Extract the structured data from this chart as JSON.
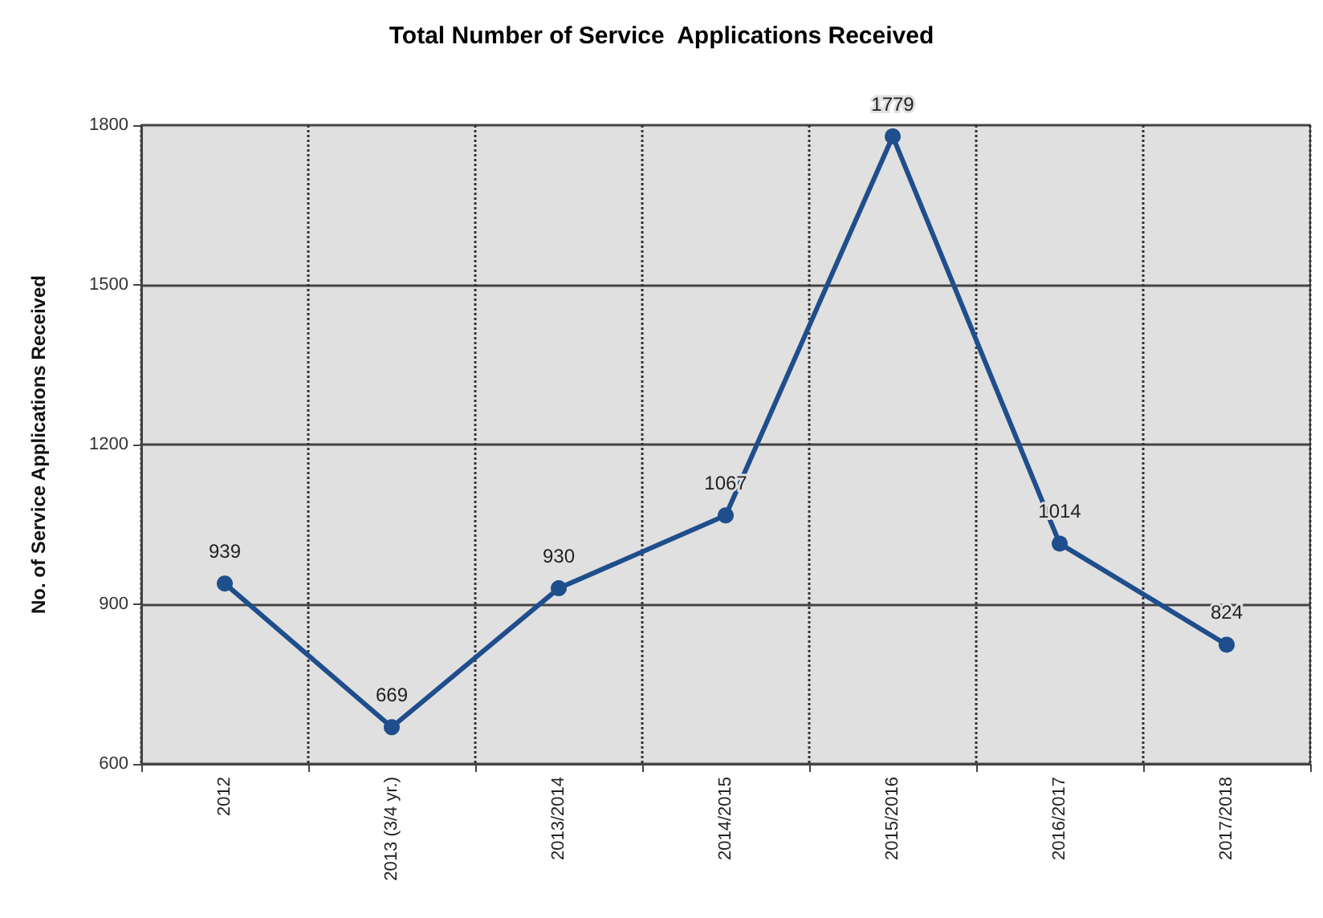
{
  "chart_data": {
    "type": "line",
    "title": "Total Number of Service  Applications Received",
    "ylabel": "No. of Service Applications Received",
    "categories": [
      "2012",
      "2013 (3/4 yr.)",
      "2013/2014",
      "2014/2015",
      "2015/2016",
      "2016/2017",
      "2017/2018"
    ],
    "series": [
      {
        "color": "#1f4e8c",
        "values": [
          939,
          669,
          930,
          1067,
          1779,
          1014,
          824
        ]
      }
    ],
    "ylim": [
      600,
      1800
    ],
    "yticks": [
      600,
      900,
      1200,
      1500,
      1800
    ],
    "grid": true,
    "marker": "circle",
    "line_style": "solid",
    "data_labels": true
  }
}
